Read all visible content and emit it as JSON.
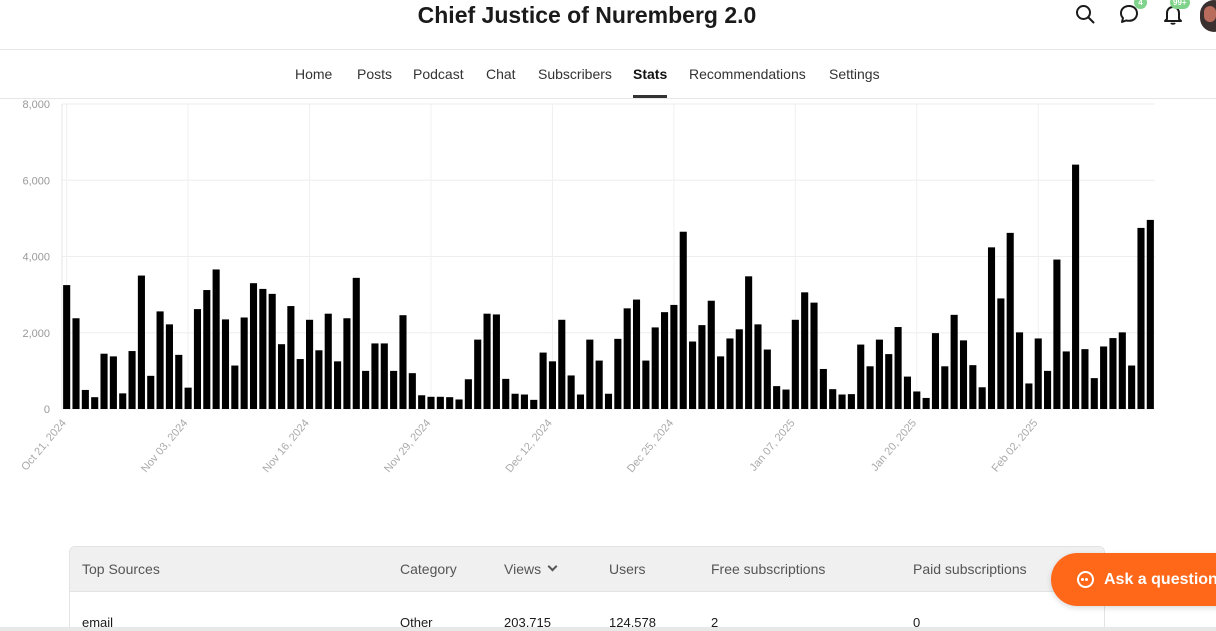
{
  "header": {
    "title": "Chief Justice of Nuremberg 2.0",
    "messages_badge": "4",
    "notifications_badge": "99+"
  },
  "icons": {
    "search": "search-icon",
    "messages": "chat-bubble-icon",
    "notifications": "bell-icon",
    "ask": "chat-dots-icon"
  },
  "nav": {
    "tabs": [
      {
        "label": "Home"
      },
      {
        "label": "Posts"
      },
      {
        "label": "Podcast"
      },
      {
        "label": "Chat"
      },
      {
        "label": "Subscribers"
      },
      {
        "label": "Stats",
        "active": true
      },
      {
        "label": "Recommendations"
      },
      {
        "label": "Settings"
      }
    ]
  },
  "colors": {
    "bar": "#000000",
    "accent": "#ff6719",
    "badge": "#7fd38a"
  },
  "chart_data": {
    "type": "bar",
    "title": "",
    "xlabel": "",
    "ylabel": "",
    "ylim": [
      0,
      8000
    ],
    "yticks": [
      "0",
      "2,000",
      "4,000",
      "6,000",
      "8,000"
    ],
    "ytick_values": [
      0,
      2000,
      4000,
      6000,
      8000
    ],
    "xtick_labels": [
      "Oct 21, 2024",
      "Nov 03, 2024",
      "Nov 16, 2024",
      "Nov 29, 2024",
      "Dec 12, 2024",
      "Dec 25, 2024",
      "Jan 07, 2025",
      "Jan 20, 2025",
      "Feb 02, 2025"
    ],
    "xtick_step_days": 13,
    "grid": true,
    "values": [
      3250,
      2380,
      500,
      310,
      1450,
      1380,
      410,
      1520,
      3500,
      870,
      2560,
      2220,
      1420,
      560,
      2620,
      3120,
      3660,
      2350,
      1140,
      2400,
      3300,
      3150,
      3020,
      1700,
      2700,
      1310,
      2340,
      1540,
      2500,
      1250,
      2380,
      3440,
      1000,
      1720,
      1720,
      1000,
      2460,
      940,
      360,
      320,
      320,
      310,
      250,
      780,
      1820,
      2500,
      2480,
      790,
      400,
      380,
      240,
      1480,
      1250,
      2340,
      880,
      380,
      1820,
      1270,
      400,
      1840,
      2640,
      2870,
      1270,
      2140,
      2540,
      2730,
      4650,
      1770,
      2200,
      2840,
      1380,
      1850,
      2090,
      3480,
      2220,
      1560,
      600,
      510,
      2340,
      3060,
      2790,
      1050,
      520,
      380,
      390,
      1690,
      1120,
      1820,
      1440,
      2150,
      850,
      460,
      290,
      1990,
      1120,
      2470,
      1800,
      1150,
      570,
      4240,
      2900,
      4620,
      2010,
      670,
      1850,
      1000,
      3920,
      1510,
      6410,
      1570,
      810,
      1640,
      1860,
      2010,
      1140,
      4750,
      4960
    ]
  },
  "table": {
    "columns": [
      {
        "label": "Top Sources"
      },
      {
        "label": "Category"
      },
      {
        "label": "Views"
      },
      {
        "label": "Users"
      },
      {
        "label": "Free subscriptions"
      },
      {
        "label": "Paid subscriptions"
      }
    ],
    "sorted_by": "Views",
    "rows": [
      [
        "email",
        "Other",
        "203,715",
        "124,578",
        "2",
        "0"
      ]
    ]
  },
  "ask_button": {
    "label": "Ask a question"
  }
}
